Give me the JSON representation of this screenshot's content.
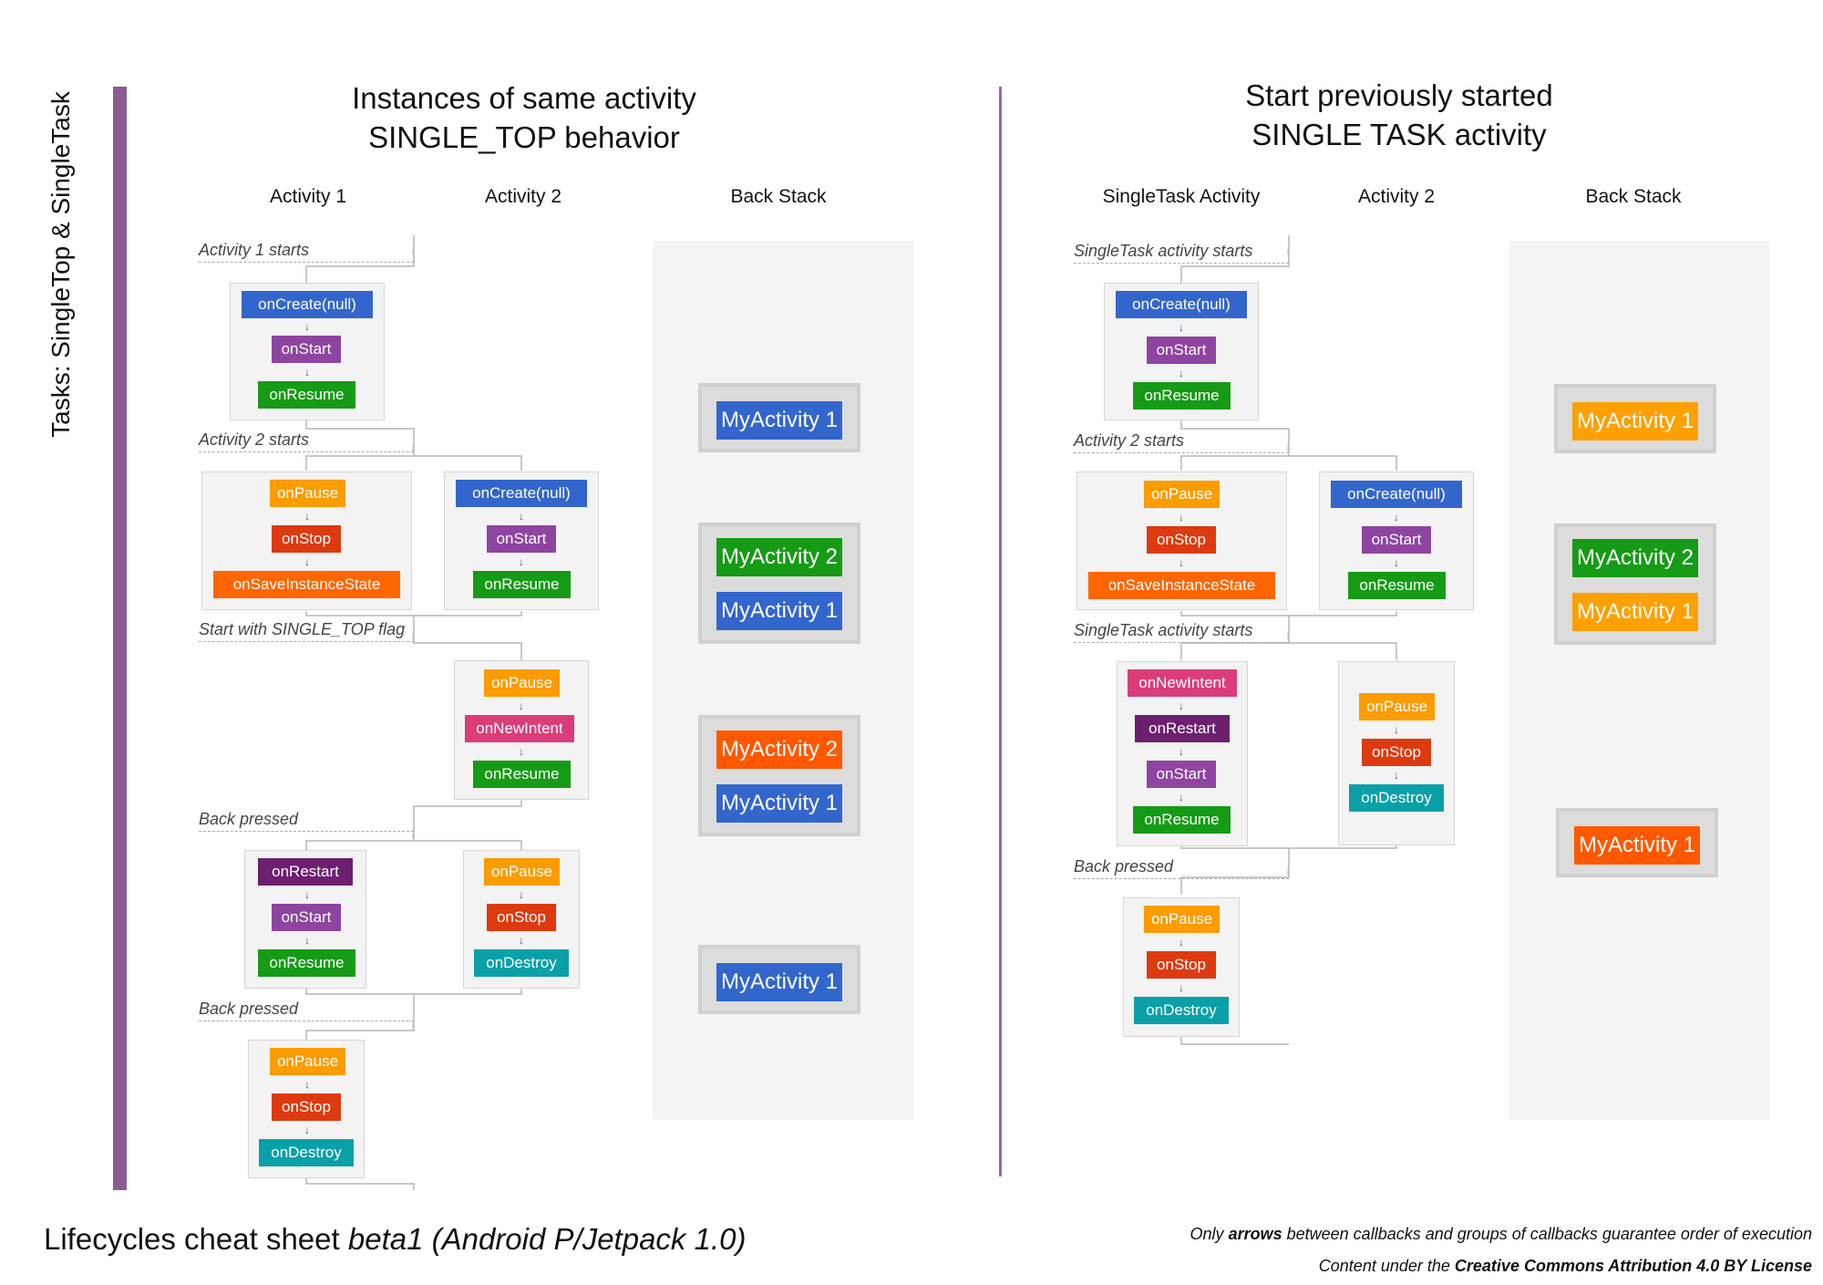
{
  "side_title": "Tasks: SingleTop & SingleTask",
  "left": {
    "title_line1": "Instances of same activity",
    "title_line2": "SINGLE_TOP behavior",
    "col_activity1": "Activity 1",
    "col_activity2": "Activity 2",
    "col_backstack": "Back Stack",
    "events": [
      "Activity 1 starts",
      "Activity 2 starts",
      "Start with SINGLE_TOP flag",
      "Back pressed",
      "Back pressed"
    ],
    "groups": [
      [
        "onCreate(null)",
        "onStart",
        "onResume"
      ],
      [
        "onPause",
        "onStop",
        "onSaveInstanceState"
      ],
      [
        "onCreate(null)",
        "onStart",
        "onResume"
      ],
      [
        "onPause",
        "onNewIntent",
        "onResume"
      ],
      [
        "onRestart",
        "onStart",
        "onResume"
      ],
      [
        "onPause",
        "onStop",
        "onDestroy"
      ],
      [
        "onPause",
        "onStop",
        "onDestroy"
      ]
    ],
    "stacks": [
      [
        "MyActivity 1"
      ],
      [
        "MyActivity 2",
        "MyActivity 1"
      ],
      [
        "MyActivity 2",
        "MyActivity 1"
      ],
      [
        "MyActivity 1"
      ]
    ]
  },
  "right": {
    "title_line1": "Start previously started",
    "title_line2": "SINGLE TASK activity",
    "col_singletask": "SingleTask Activity",
    "col_activity2": "Activity 2",
    "col_backstack": "Back Stack",
    "events": [
      "SingleTask activity starts",
      "Activity 2 starts",
      "SingleTask activity starts",
      "Back pressed"
    ],
    "groups": [
      [
        "onCreate(null)",
        "onStart",
        "onResume"
      ],
      [
        "onPause",
        "onStop",
        "onSaveInstanceState"
      ],
      [
        "onCreate(null)",
        "onStart",
        "onResume"
      ],
      [
        "onNewIntent",
        "onRestart",
        "onStart",
        "onResume"
      ],
      [
        "onPause",
        "onStop",
        "onDestroy"
      ],
      [
        "onPause",
        "onStop",
        "onDestroy"
      ]
    ],
    "stacks": [
      [
        "MyActivity 1"
      ],
      [
        "MyActivity 2",
        "MyActivity 1"
      ],
      [
        "MyActivity 1"
      ]
    ]
  },
  "arrow_glyph": "↓",
  "footer": {
    "title": "Lifecycles cheat sheet",
    "title_italic": "beta1 (Android P/Jetpack 1.0)",
    "note1_pre": "Only",
    "note1_bold": "arrows",
    "note1_post": "between callbacks and groups of callbacks guarantee order of execution",
    "note2_pre": "Content under the",
    "note2_bold": "Creative Commons Attribution 4.0 BY License"
  },
  "colors": {
    "onCreate": "#3366cc",
    "onStart": "#8e44a0",
    "onResume": "#169b16",
    "onPause": "#fb9c00",
    "onStop": "#dd3a10",
    "onSaveInstanceState": "#ff6600",
    "onNewIntent": "#db3d7a",
    "onRestart": "#6d1f6f",
    "onDestroy": "#0aa0a8"
  }
}
